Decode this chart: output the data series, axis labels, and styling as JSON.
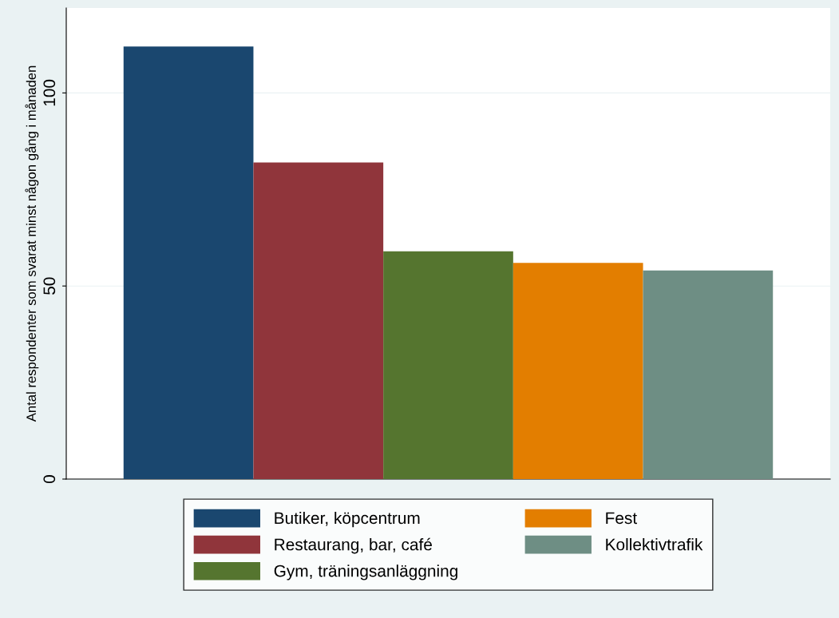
{
  "chart_data": {
    "type": "bar",
    "ylabel": "Antal respondenter som svarat minst någon gång i månaden",
    "categories": [
      null
    ],
    "series": [
      {
        "name": "Butiker, köpcentrum",
        "color": "#1a476f",
        "values": [
          112
        ]
      },
      {
        "name": "Restaurang, bar, café",
        "color": "#90353b",
        "values": [
          82
        ]
      },
      {
        "name": "Gym, träningsanläggning",
        "color": "#55752f",
        "values": [
          59
        ]
      },
      {
        "name": "Fest",
        "color": "#e37e00",
        "values": [
          56
        ]
      },
      {
        "name": "Kollektivtrafik",
        "color": "#6e8e84",
        "values": [
          54
        ]
      }
    ],
    "ylim": [
      0,
      122
    ],
    "yticks": [
      0,
      50,
      100
    ],
    "grid": "y",
    "legend": "bottom"
  }
}
